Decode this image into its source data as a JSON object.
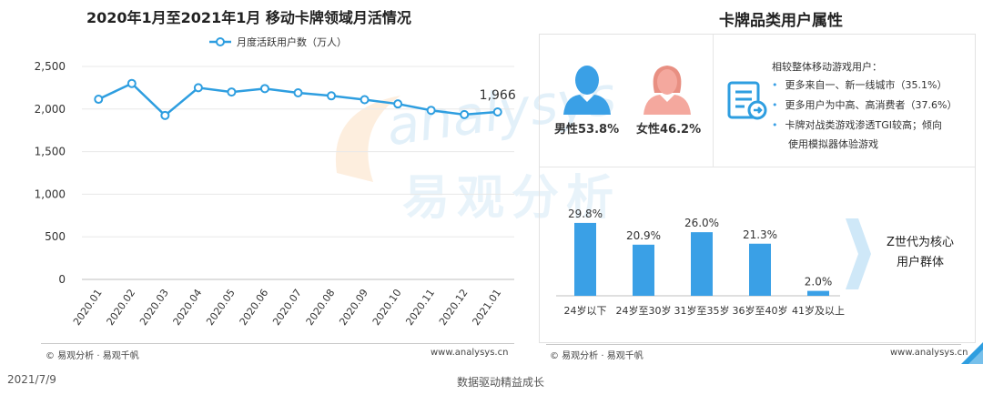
{
  "left_chart": {
    "title": "2020年1月至2021年1月 移动卡牌领域月活情况",
    "footer_brand": "© 易观分析 · 易观千帆",
    "footer_url": "www.analysys.cn"
  },
  "right_panel": {
    "title": "卡牌品类用户属性",
    "male_label": "男性53.8%",
    "female_label": "女性46.2%",
    "bullets_title": "相较整体移动游戏用户：",
    "bullets": [
      "更多来自一、新一线城市（35.1%）",
      "更多用户为中高、高消费者（37.6%）",
      "卡牌对战类游戏渗透TGI较高；倾向"
    ],
    "bullet_continuation": "使用模拟器体验游戏",
    "z_text_line1": "Z世代为核心",
    "z_text_line2": "用户群体",
    "footer_brand": "© 易观分析 · 易观千帆",
    "footer_url": "www.analysys.cn"
  },
  "watermark": {
    "text_latin": "analysys",
    "text_cn": "易观分析"
  },
  "bottom": {
    "date": "2021/7/9",
    "slogan": "数据驱动精益成长"
  },
  "colors": {
    "series": "#2e9ee0",
    "bar": "#3aa0e6",
    "person_male": "#3aa0e6",
    "person_female": "#f4a89e",
    "grid": "#e8e8e8"
  },
  "chart_data": [
    {
      "type": "line",
      "title": "2020年1月至2021年1月 移动卡牌领域月活情况",
      "x": [
        "2020.01",
        "2020.02",
        "2020.03",
        "2020.04",
        "2020.05",
        "2020.06",
        "2020.07",
        "2020.08",
        "2020.09",
        "2020.10",
        "2020.11",
        "2020.12",
        "2021.01"
      ],
      "series": [
        {
          "name": "月度活跃用户数（万人）",
          "values": [
            2115,
            2300,
            1925,
            2250,
            2200,
            2240,
            2190,
            2155,
            2110,
            2060,
            1985,
            1935,
            1966
          ]
        }
      ],
      "y_ticks": [
        "0",
        "500",
        "1,000",
        "1,500",
        "2,000",
        "2,500"
      ],
      "ylim": [
        0,
        2500
      ],
      "last_value_label": "1,966",
      "legend": "top",
      "grid": true
    },
    {
      "type": "bar",
      "categories": [
        "24岁以下",
        "24岁至30岁",
        "31岁至35岁",
        "36岁至40岁",
        "41岁及以上"
      ],
      "values": [
        29.8,
        20.9,
        26.0,
        21.3,
        2.0
      ],
      "value_labels": [
        "29.8%",
        "20.9%",
        "26.0%",
        "21.3%",
        "2.0%"
      ],
      "ylim": [
        0,
        32
      ]
    }
  ]
}
